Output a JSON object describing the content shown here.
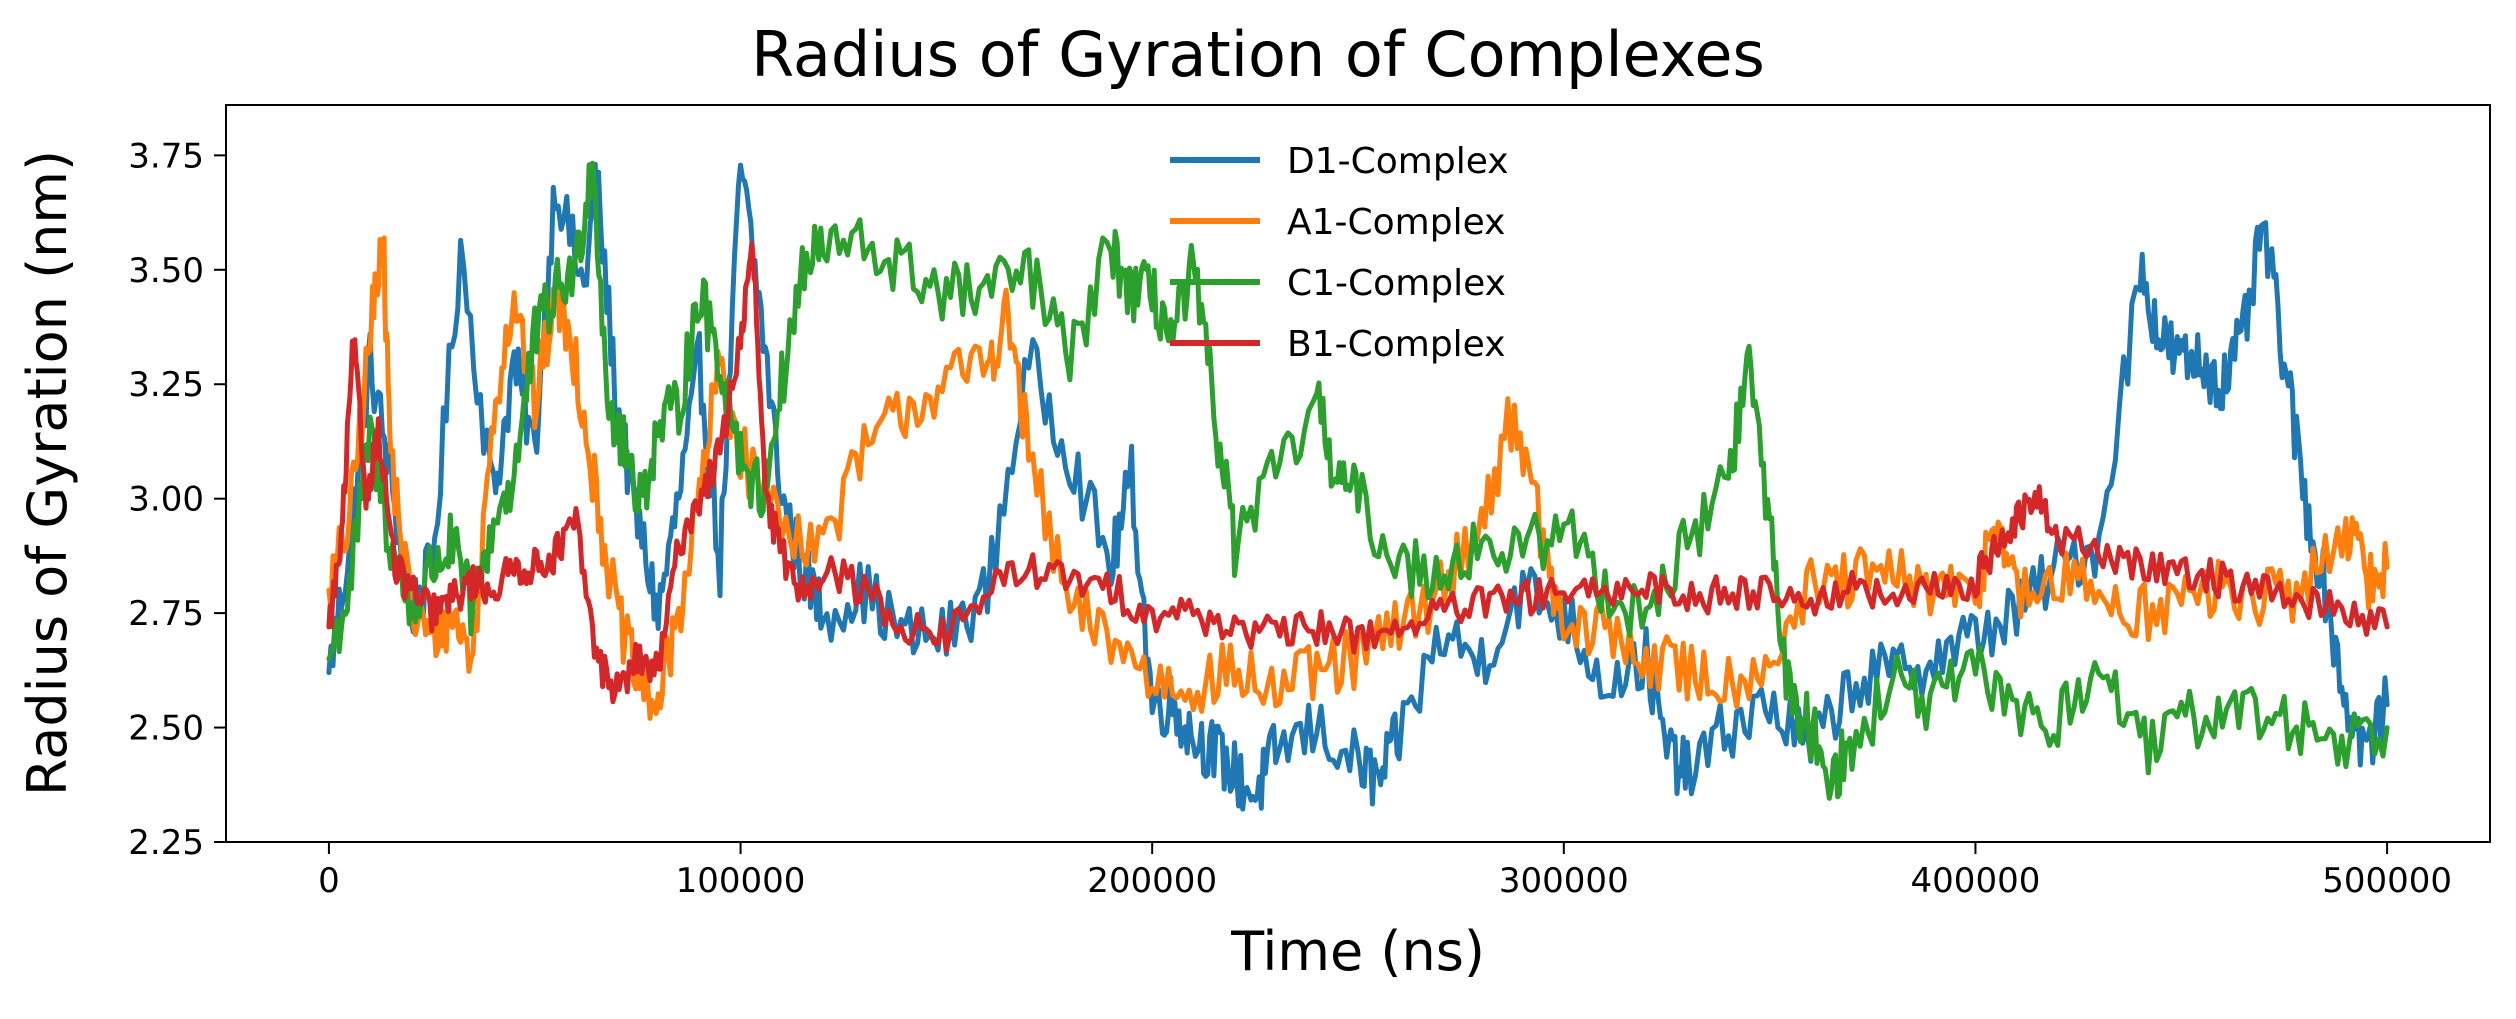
{
  "chart_data": {
    "type": "line",
    "title": "Radius of Gyration of Complexes",
    "xlabel": "Time (ns)",
    "ylabel": "Radius of Gyration (nm)",
    "xlim": [
      -25000,
      525000
    ],
    "ylim": [
      2.25,
      3.86
    ],
    "xticks": [
      0,
      100000,
      200000,
      300000,
      400000,
      500000
    ],
    "xtick_labels": [
      "0",
      "100000",
      "200000",
      "300000",
      "400000",
      "500000"
    ],
    "yticks": [
      2.25,
      2.5,
      2.75,
      3.0,
      3.25,
      3.5,
      3.75
    ],
    "ytick_labels": [
      "2.25",
      "2.50",
      "2.75",
      "3.00",
      "3.25",
      "3.50",
      "3.75"
    ],
    "grid": false,
    "legend_position": "upper-center",
    "colors": {
      "D1-Complex": "#1f77b4",
      "A1-Complex": "#ff7f0e",
      "C1-Complex": "#2ca02c",
      "B1-Complex": "#d62728"
    },
    "series": [
      {
        "name": "D1-Complex",
        "x": [
          0,
          5000,
          10000,
          15000,
          20000,
          25000,
          32000,
          40000,
          45000,
          50000,
          55000,
          62000,
          65000,
          70000,
          75000,
          80000,
          85000,
          90000,
          95000,
          100000,
          105000,
          110000,
          115000,
          120000,
          130000,
          140000,
          150000,
          160000,
          170000,
          180000,
          190000,
          195000,
          200000,
          205000,
          210000,
          215000,
          220000,
          225000,
          230000,
          240000,
          250000,
          255000,
          260000,
          270000,
          280000,
          290000,
          300000,
          310000,
          320000,
          325000,
          330000,
          340000,
          350000,
          360000,
          370000,
          380000,
          390000,
          400000,
          410000,
          420000,
          430000,
          440000,
          445000,
          450000,
          455000,
          460000,
          465000,
          470000,
          475000,
          480000,
          485000,
          490000,
          495000,
          500000
        ],
        "y": [
          2.62,
          2.9,
          3.3,
          3.05,
          2.75,
          2.85,
          3.55,
          3.0,
          3.3,
          3.1,
          3.7,
          3.45,
          3.7,
          3.2,
          2.95,
          2.75,
          3.0,
          3.3,
          2.85,
          3.73,
          3.4,
          3.0,
          2.85,
          2.75,
          2.8,
          2.7,
          2.7,
          2.8,
          3.3,
          3.1,
          2.85,
          3.05,
          2.55,
          2.55,
          2.48,
          2.45,
          2.4,
          2.35,
          2.45,
          2.5,
          2.42,
          2.38,
          2.48,
          2.7,
          2.65,
          2.8,
          2.75,
          2.6,
          2.65,
          2.45,
          2.4,
          2.5,
          2.55,
          2.45,
          2.6,
          2.62,
          2.65,
          2.7,
          2.75,
          2.85,
          2.9,
          3.5,
          3.35,
          3.3,
          3.3,
          3.25,
          3.35,
          3.6,
          3.3,
          3.0,
          2.8,
          2.55,
          2.45,
          2.55
        ]
      },
      {
        "name": "A1-Complex",
        "x": [
          0,
          5000,
          10000,
          13000,
          15000,
          20000,
          25000,
          30000,
          35000,
          40000,
          45000,
          50000,
          55000,
          60000,
          65000,
          70000,
          75000,
          80000,
          85000,
          90000,
          95000,
          100000,
          110000,
          120000,
          130000,
          140000,
          150000,
          160000,
          165000,
          170000,
          180000,
          190000,
          200000,
          210000,
          220000,
          230000,
          240000,
          250000,
          260000,
          270000,
          280000,
          288000,
          295000,
          300000,
          310000,
          320000,
          330000,
          340000,
          350000,
          360000,
          370000,
          380000,
          390000,
          400000,
          405000,
          410000,
          420000,
          430000,
          440000,
          450000,
          460000,
          470000,
          480000,
          490000,
          495000,
          500000
        ],
        "y": [
          2.8,
          2.95,
          3.35,
          3.6,
          3.1,
          2.75,
          2.7,
          2.75,
          2.65,
          3.2,
          3.45,
          3.2,
          3.45,
          3.3,
          3.0,
          2.75,
          2.6,
          2.55,
          2.75,
          3.0,
          3.3,
          3.1,
          2.95,
          2.9,
          3.1,
          3.2,
          3.25,
          3.3,
          3.4,
          3.1,
          2.75,
          2.7,
          2.6,
          2.6,
          2.62,
          2.58,
          2.62,
          2.65,
          2.72,
          2.8,
          2.95,
          3.2,
          2.9,
          2.7,
          2.72,
          2.65,
          2.62,
          2.6,
          2.65,
          2.8,
          2.82,
          2.83,
          2.8,
          2.78,
          2.98,
          2.78,
          2.82,
          2.8,
          2.75,
          2.78,
          2.8,
          2.78,
          2.8,
          2.95,
          2.82,
          2.85
        ]
      },
      {
        "name": "C1-Complex",
        "x": [
          0,
          5000,
          10000,
          15000,
          20000,
          25000,
          30000,
          35000,
          40000,
          45000,
          50000,
          55000,
          60000,
          64000,
          68000,
          72000,
          76000,
          80000,
          85000,
          90000,
          95000,
          100000,
          105000,
          110000,
          115000,
          120000,
          130000,
          140000,
          150000,
          160000,
          170000,
          180000,
          190000,
          195000,
          200000,
          205000,
          210000,
          215000,
          220000,
          230000,
          240000,
          245000,
          250000,
          260000,
          270000,
          280000,
          290000,
          300000,
          310000,
          320000,
          330000,
          340000,
          345000,
          350000,
          355000,
          360000,
          365000,
          370000,
          380000,
          390000,
          400000,
          410000,
          420000,
          430000,
          440000,
          450000,
          460000,
          470000,
          480000,
          490000,
          500000
        ],
        "y": [
          2.65,
          2.8,
          3.15,
          2.9,
          2.75,
          2.85,
          2.9,
          2.75,
          2.95,
          3.05,
          3.35,
          3.45,
          3.5,
          3.75,
          3.2,
          3.1,
          3.0,
          3.15,
          3.2,
          3.45,
          3.3,
          3.1,
          3.0,
          3.25,
          3.5,
          3.55,
          3.55,
          3.5,
          3.45,
          3.45,
          3.5,
          3.3,
          3.55,
          3.45,
          3.45,
          3.35,
          3.5,
          3.2,
          2.9,
          3.05,
          3.2,
          3.05,
          3.0,
          2.85,
          2.85,
          2.9,
          2.88,
          2.95,
          2.8,
          2.75,
          2.9,
          3.05,
          3.3,
          2.95,
          2.55,
          2.5,
          2.4,
          2.45,
          2.6,
          2.55,
          2.62,
          2.55,
          2.5,
          2.65,
          2.45,
          2.5,
          2.55,
          2.52,
          2.5,
          2.48,
          2.5
        ]
      },
      {
        "name": "B1-Complex",
        "x": [
          0,
          3000,
          6000,
          9000,
          12000,
          16000,
          20000,
          25000,
          30000,
          35000,
          40000,
          45000,
          50000,
          55000,
          60000,
          65000,
          70000,
          75000,
          80000,
          85000,
          90000,
          95000,
          100000,
          103000,
          106000,
          110000,
          115000,
          120000,
          130000,
          140000,
          150000,
          160000,
          170000,
          180000,
          190000,
          200000,
          210000,
          220000,
          230000,
          240000,
          250000,
          260000,
          270000,
          280000,
          290000,
          300000,
          310000,
          320000,
          330000,
          340000,
          350000,
          360000,
          370000,
          380000,
          390000,
          400000,
          405000,
          410000,
          415000,
          420000,
          430000,
          440000,
          450000,
          460000,
          470000,
          480000,
          490000,
          500000
        ],
        "y": [
          2.72,
          2.9,
          3.35,
          3.0,
          3.15,
          2.85,
          2.8,
          2.75,
          2.78,
          2.82,
          2.8,
          2.85,
          2.85,
          2.88,
          2.95,
          2.65,
          2.58,
          2.65,
          2.62,
          2.9,
          3.0,
          3.1,
          3.35,
          3.55,
          3.0,
          2.88,
          2.8,
          2.85,
          2.8,
          2.72,
          2.7,
          2.8,
          2.85,
          2.82,
          2.8,
          2.75,
          2.75,
          2.72,
          2.7,
          2.72,
          2.7,
          2.72,
          2.75,
          2.77,
          2.78,
          2.8,
          2.78,
          2.82,
          2.78,
          2.8,
          2.8,
          2.78,
          2.8,
          2.78,
          2.8,
          2.82,
          2.9,
          2.95,
          3.0,
          2.92,
          2.88,
          2.85,
          2.85,
          2.82,
          2.8,
          2.78,
          2.75,
          2.72
        ]
      }
    ]
  }
}
